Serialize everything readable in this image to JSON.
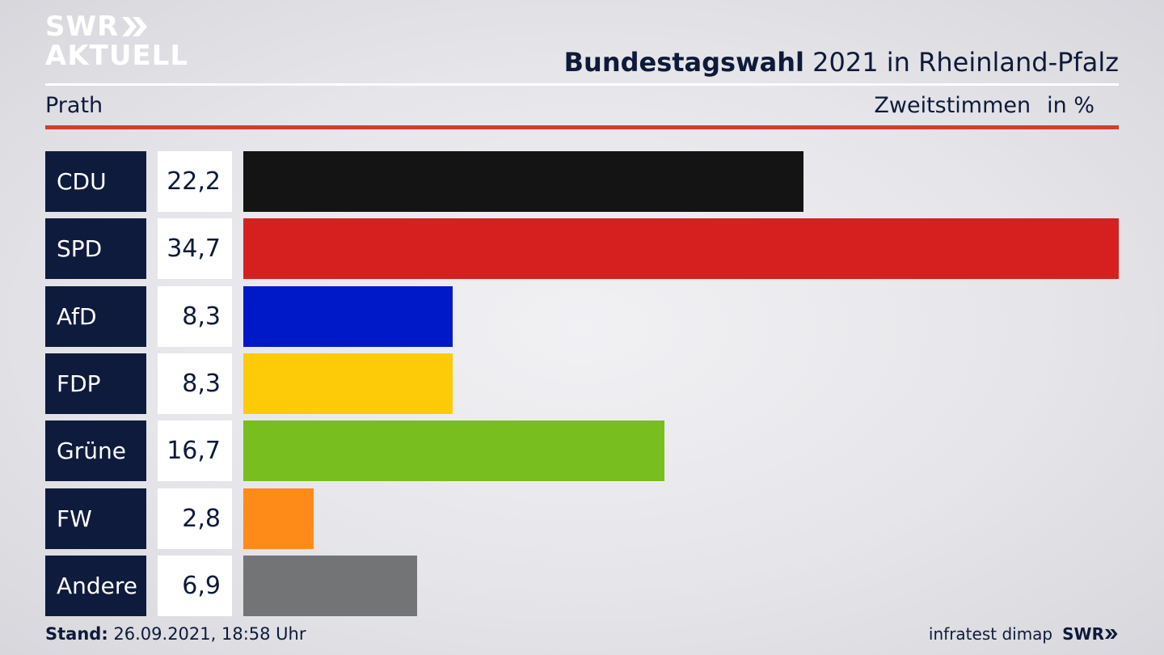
{
  "brand": {
    "line1": "SWR",
    "line2": "AKTUELL"
  },
  "header": {
    "title_bold": "Bundestagswahl",
    "title_rest": " 2021 in Rheinland-Pfalz",
    "region": "Prath",
    "measure": "Zweitstimmen",
    "unit": "in %"
  },
  "chart_data": {
    "type": "bar",
    "orientation": "horizontal",
    "categories": [
      "CDU",
      "SPD",
      "AfD",
      "FDP",
      "Grüne",
      "FW",
      "Andere"
    ],
    "values": [
      22.2,
      34.7,
      8.3,
      8.3,
      16.7,
      2.8,
      6.9
    ],
    "value_labels": [
      "22,2",
      "34,7",
      "8,3",
      "8,3",
      "16,7",
      "2,8",
      "6,9"
    ],
    "colors": [
      "#141414",
      "#d62020",
      "#0019c8",
      "#fdcb07",
      "#78be1e",
      "#fe8b17",
      "#737476"
    ],
    "xlim": [
      0,
      34.7
    ]
  },
  "footer": {
    "stand_label": "Stand:",
    "stand_value": " 26.09.2021, 18:58 Uhr",
    "source": "infratest dimap",
    "source_brand": "SWR"
  }
}
